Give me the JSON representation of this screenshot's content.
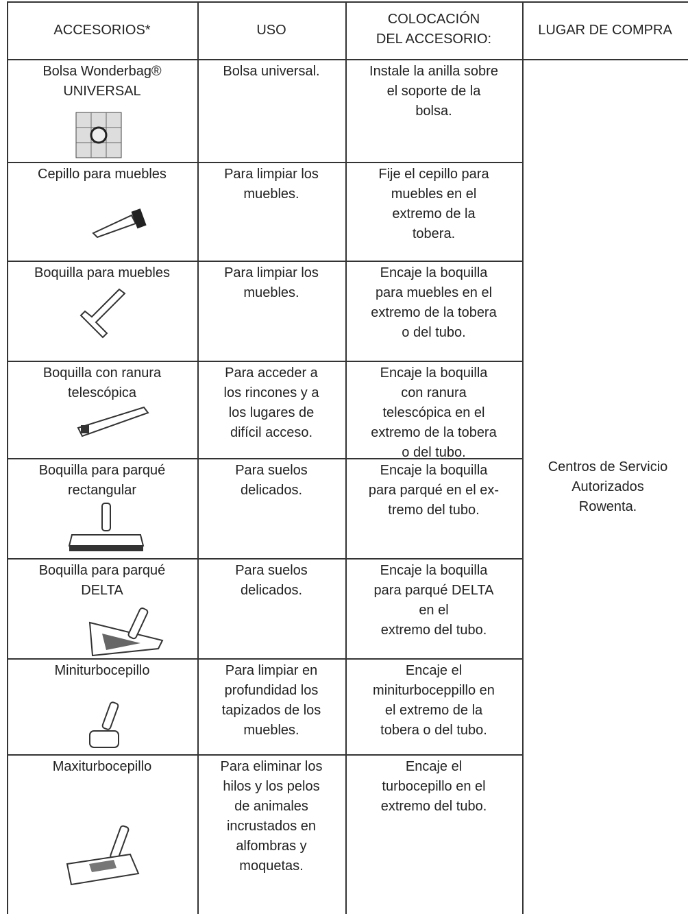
{
  "table": {
    "header": [
      "ACCESORIOS*",
      "USO",
      "COLOCACIÓN\nDEL ACCESORIO:",
      "LUGAR DE COMPRA"
    ],
    "rows": [
      [
        "Bolsa Wonderbag®\nUNIVERSAL",
        "Bolsa universal.",
        "Instale la anilla sobre\nel soporte de la\nbolsa."
      ],
      [
        "Cepillo para muebles",
        "Para limpiar los\nmuebles.",
        "Fije el cepillo para\nmuebles en el\nextremo de la\ntobera."
      ],
      [
        "Boquilla para muebles",
        "Para limpiar los\nmuebles.",
        "Encaje la boquilla\npara muebles en el\nextremo de la tobera\no del tubo."
      ],
      [
        "Boquilla con ranura\ntelescópica",
        "Para acceder a\nlos rincones y a\nlos lugares de\ndifícil acceso.",
        "Encaje la boquilla\ncon ranura\ntelescópica en el\nextremo de la tobera\no del tubo."
      ],
      [
        "Boquilla para parqué\nrectangular",
        "Para suelos\ndelicados.",
        "Encaje la boquilla\npara parqué en el ex-\ntremo del tubo."
      ],
      [
        "Boquilla para parqué\nDELTA",
        "Para suelos\ndelicados.",
        "Encaje la boquilla\npara parqué DELTA\nen el\nextremo del tubo."
      ],
      [
        "Miniturbocepillo",
        "Para limpiar en\nprofundidad los\ntapizados de los\nmuebles.",
        "Encaje el\nminiturboceppillo en\nel extremo de la\ntobera o del tubo."
      ],
      [
        "Maxiturbocepillo",
        "Para eliminar los\nhilos y los pelos\nde animales\nincrustados en\nalfombras y\nmoquetas.",
        "Encaje el\nturbocepillo en el\nextremo del tubo."
      ]
    ],
    "place": "Centros de Servicio\nAutorizados\nRowenta."
  }
}
